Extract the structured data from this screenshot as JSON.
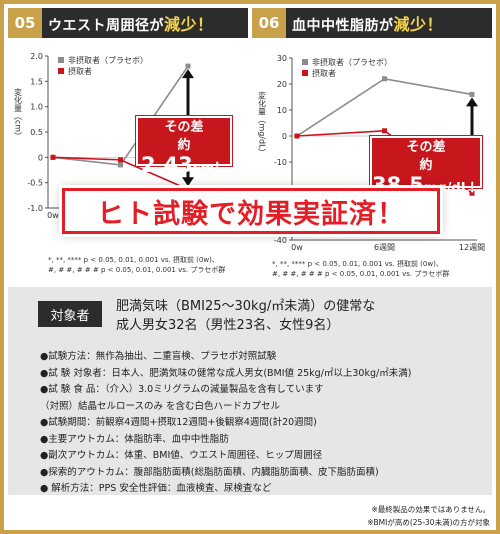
{
  "panel_left": {
    "num": "05",
    "title": "ウエスト周囲径が",
    "title_hl": "減少！",
    "legend": [
      "非摂取者（プラセボ）",
      "摂取者"
    ],
    "callout_line1": "その差",
    "callout_prefix": "約",
    "callout_value": "2.43",
    "callout_unit": "cm！",
    "footnote": [
      "*, **, **** p < 0.05, 0.01, 0.001 vs. 摂取前 (0w)、",
      "#, # #, # # # p < 0.05, 0.01, 0.001 vs. プラセボ群"
    ]
  },
  "panel_right": {
    "num": "06",
    "title": "血中中性脂肪が",
    "title_hl": "減少！",
    "legend": [
      "非摂取者（プラセボ）",
      "摂取者"
    ],
    "callout_line1": "その差",
    "callout_prefix": "約",
    "callout_value": "38.5",
    "callout_unit": "mg/dL！",
    "footnote": [
      "*, **, **** p < 0.05, 0.01, 0.001 vs. 摂取前 (0w)、",
      "#, # #, # # # p < 0.05, 0.01, 0.001 vs. プラセボ群"
    ]
  },
  "banner": "ヒト試験で効果実証済！",
  "info": {
    "tag": "対象者",
    "subject_line1": "肥満気味（BMI25〜30kg/㎡未満）の健常な",
    "subject_line2": "成人男女32名（男性23名、女性9名）",
    "bullets": [
      "●試験方法：無作為抽出、二重盲検、プラセボ対照試験",
      "●試 験 対象者：日本人、肥満気味の健常な成人男女(BMI値 25kg/㎡以上30kg/㎡未満)",
      "●試 験 食 品：（介入）3.0ミリグラムの減量製品を含有しています",
      "（対照）結晶セルロースのみ を含む白色ハードカプセル",
      "●試験期間：前観察4週間+摂取12週間+後観察4週間(計20週間)",
      "●主要アウトカム：体脂肪率、血中中性脂肪",
      "●副次アウトカム：体重、BMI値、ウエスト周囲径、ヒップ周囲径",
      "●探索的アウトカム：腹部脂肪面積(総脂肪面積、内臓脂肪面積、皮下脂肪面積)",
      "● 解析方法：PPS 安全性評価：血液検査、尿検査など"
    ]
  },
  "notes": [
    "※最終製品の効果ではありません。",
    "※BMIが高め(25-30未満)の方が対象"
  ],
  "colors": {
    "placebo": "#8c8c8c",
    "intake": "#d0111b",
    "gold": "#c9a14b",
    "dark": "#2c2c2c"
  },
  "chart_data": [
    {
      "type": "line",
      "ylabel": "変化量（cm）",
      "x": [
        "0w",
        "",
        ""
      ],
      "yticks": [
        "2.0",
        "1.5",
        "1.0",
        "0.5",
        "0",
        "-0.5",
        "-1.0"
      ],
      "ylim": [
        -1.0,
        2.0
      ],
      "series": [
        {
          "name": "非摂取者（プラセボ）",
          "values": [
            0,
            -0.15,
            1.8
          ]
        },
        {
          "name": "摂取者",
          "values": [
            0,
            -0.05,
            -0.63
          ]
        }
      ]
    },
    {
      "type": "line",
      "ylabel": "変化量（mg/dL）",
      "x": [
        "0w",
        "6週間",
        "12週間"
      ],
      "yticks": [
        "30",
        "20",
        "10",
        "0",
        "-10",
        "-20",
        "-30",
        "-40"
      ],
      "ylim": [
        -40,
        30
      ],
      "series": [
        {
          "name": "非摂取者（プラセボ）",
          "values": [
            0,
            22,
            16
          ]
        },
        {
          "name": "摂取者",
          "values": [
            0,
            2,
            -22
          ]
        }
      ]
    }
  ]
}
